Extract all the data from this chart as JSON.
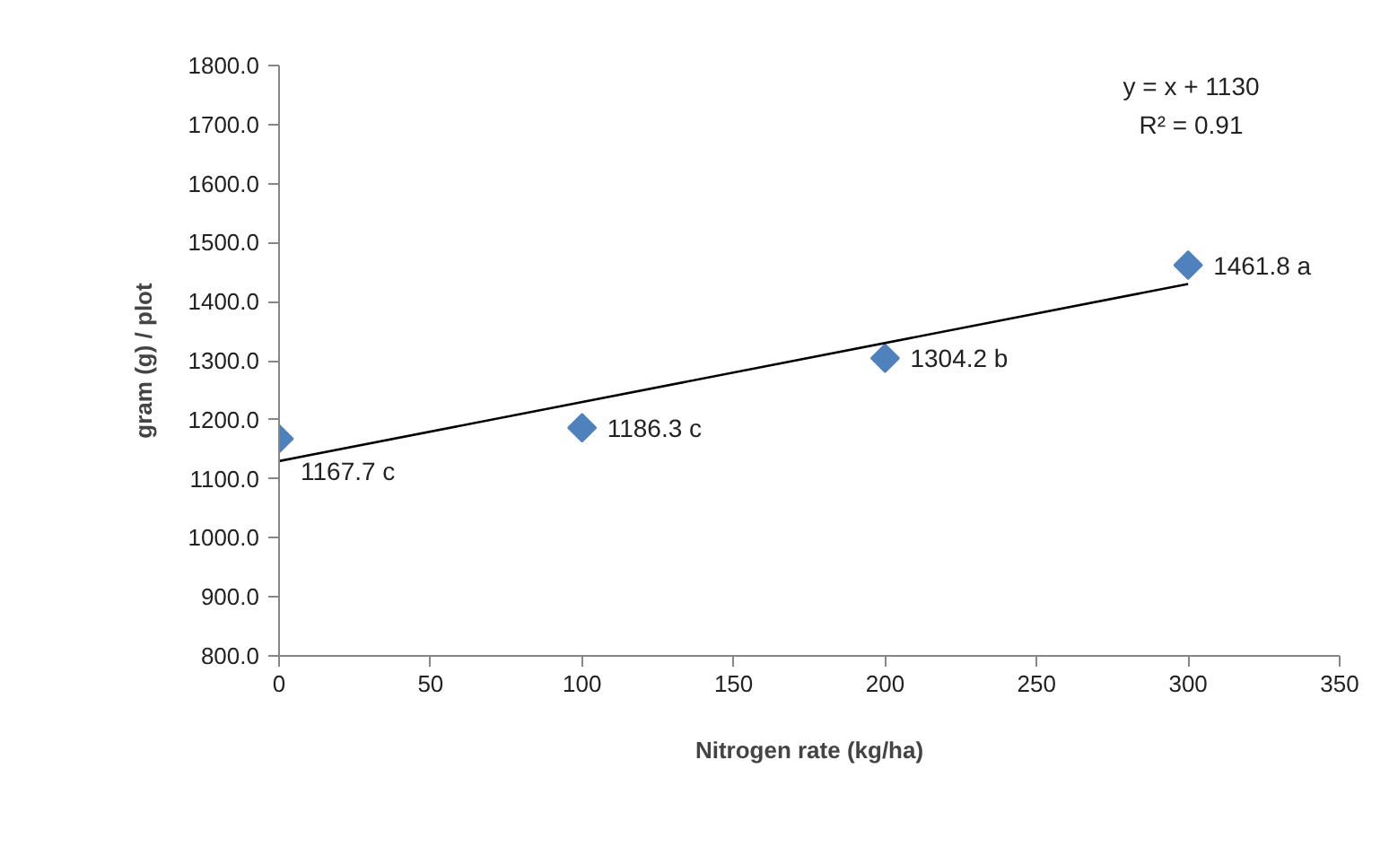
{
  "chart_data": {
    "type": "scatter",
    "xlabel": "Nitrogen rate (kg/ha)",
    "ylabel": "gram (g) / plot",
    "xlim": [
      0,
      350
    ],
    "xticks": [
      0,
      50,
      100,
      150,
      200,
      250,
      300,
      350
    ],
    "ylim": [
      800,
      1800
    ],
    "yticks": [
      {
        "value": 800,
        "label": "800.0"
      },
      {
        "value": 900,
        "label": "900.0"
      },
      {
        "value": 1000,
        "label": "1000.0"
      },
      {
        "value": 1100,
        "label": "1100.0"
      },
      {
        "value": 1200,
        "label": "1200.0"
      },
      {
        "value": 1300,
        "label": "1300.0"
      },
      {
        "value": 1400,
        "label": "1400.0"
      },
      {
        "value": 1500,
        "label": "1500.0"
      },
      {
        "value": 1600,
        "label": "1600.0"
      },
      {
        "value": 1700,
        "label": "1700.0"
      },
      {
        "value": 1800,
        "label": "1800.0"
      }
    ],
    "grid": false,
    "marker": "diamond",
    "series": [
      {
        "color": "#4f81bd",
        "x": [
          0,
          100,
          200,
          300
        ],
        "values": [
          1167.7,
          1186.3,
          1304.2,
          1461.8
        ],
        "value_labels": [
          "1167.7 c",
          "1186.3 c",
          "1304.2 b",
          "1461.8 a"
        ]
      },
      {
        "type": "line",
        "color": "#000000",
        "x": [
          0,
          300
        ],
        "values": [
          1130,
          1430
        ],
        "marker": "none",
        "line_style": "solid"
      }
    ],
    "annotations": [
      "y = x + 1130",
      "R² = 0.91"
    ]
  }
}
